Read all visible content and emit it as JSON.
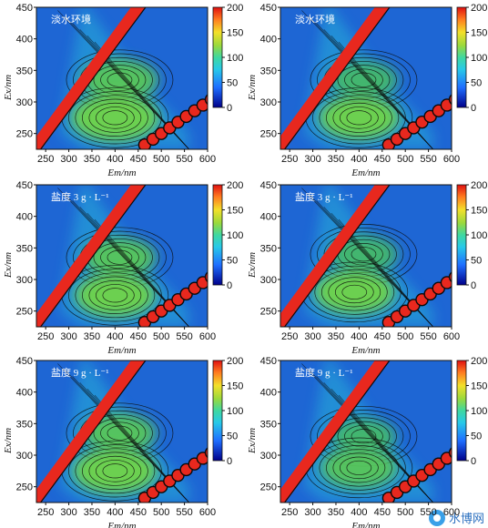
{
  "chart_data": [
    {
      "type": "heatmap",
      "condition": "淡水环境",
      "xlabel": "Em/nm",
      "ylabel": "Ex/nm",
      "x_ticks": [
        250,
        300,
        350,
        400,
        450,
        500,
        550,
        600
      ],
      "y_ticks": [
        250,
        300,
        350,
        400,
        450
      ],
      "xlim": [
        230,
        600
      ],
      "ylim": [
        225,
        450
      ],
      "colorbar": {
        "ticks": [
          0,
          50,
          100,
          150,
          200
        ],
        "range": [
          0,
          200
        ]
      },
      "peaks": [
        {
          "em": 410,
          "ex": 335,
          "intensity": 95
        },
        {
          "em": 400,
          "ex": 275,
          "intensity": 110
        }
      ]
    },
    {
      "type": "heatmap",
      "condition": "淡水环境",
      "xlabel": "Em/nm",
      "ylabel": "Ex/nm",
      "x_ticks": [
        250,
        300,
        350,
        400,
        450,
        500,
        550,
        600
      ],
      "y_ticks": [
        250,
        300,
        350,
        400,
        450
      ],
      "xlim": [
        230,
        600
      ],
      "ylim": [
        225,
        450
      ],
      "colorbar": {
        "ticks": [
          0,
          50,
          100,
          150,
          200
        ],
        "range": [
          0,
          200
        ]
      },
      "peaks": [
        {
          "em": 410,
          "ex": 335,
          "intensity": 85
        },
        {
          "em": 400,
          "ex": 275,
          "intensity": 100
        }
      ]
    },
    {
      "type": "heatmap",
      "condition": "盐度 3 g · L⁻¹",
      "xlabel": "Em/nm",
      "ylabel": "Ex/nm",
      "x_ticks": [
        250,
        300,
        350,
        400,
        450,
        500,
        550,
        600
      ],
      "y_ticks": [
        250,
        300,
        350,
        400,
        450
      ],
      "xlim": [
        230,
        600
      ],
      "ylim": [
        225,
        450
      ],
      "colorbar": {
        "ticks": [
          0,
          50,
          100,
          150,
          200
        ],
        "range": [
          0,
          200
        ]
      },
      "peaks": [
        {
          "em": 410,
          "ex": 335,
          "intensity": 90
        },
        {
          "em": 400,
          "ex": 275,
          "intensity": 100
        }
      ]
    },
    {
      "type": "heatmap",
      "condition": "盐度 3 g · L⁻¹",
      "xlabel": "Em/nm",
      "ylabel": "Ex/nm",
      "x_ticks": [
        250,
        300,
        350,
        400,
        450,
        500,
        550,
        600
      ],
      "y_ticks": [
        250,
        300,
        350,
        400,
        450
      ],
      "xlim": [
        230,
        600
      ],
      "ylim": [
        225,
        450
      ],
      "colorbar": {
        "ticks": [
          0,
          50,
          100,
          150,
          200
        ],
        "range": [
          0,
          200
        ]
      },
      "peaks": [
        {
          "em": 410,
          "ex": 340,
          "intensity": 85
        },
        {
          "em": 390,
          "ex": 280,
          "intensity": 100
        }
      ]
    },
    {
      "type": "heatmap",
      "condition": "盐度 9 g · L⁻¹",
      "xlabel": "Em/nm",
      "ylabel": "Ex/nm",
      "x_ticks": [
        250,
        300,
        350,
        400,
        450,
        500,
        550,
        600
      ],
      "y_ticks": [
        250,
        300,
        350,
        400,
        450
      ],
      "xlim": [
        230,
        600
      ],
      "ylim": [
        225,
        450
      ],
      "colorbar": {
        "ticks": [
          0,
          50,
          100,
          150,
          200
        ],
        "range": [
          0,
          200
        ]
      },
      "peaks": [
        {
          "em": 410,
          "ex": 335,
          "intensity": 90
        },
        {
          "em": 400,
          "ex": 275,
          "intensity": 105
        }
      ]
    },
    {
      "type": "heatmap",
      "condition": "盐度 9 g · L⁻¹",
      "xlabel": "Em/nm",
      "ylabel": "Ex/nm",
      "x_ticks": [
        250,
        300,
        350,
        400,
        450,
        500,
        550,
        600
      ],
      "y_ticks": [
        250,
        300,
        350,
        400,
        450
      ],
      "xlim": [
        230,
        600
      ],
      "ylim": [
        225,
        450
      ],
      "colorbar": {
        "ticks": [
          0,
          50,
          100,
          150,
          200
        ],
        "range": [
          0,
          200
        ]
      },
      "peaks": [
        {
          "em": 410,
          "ex": 330,
          "intensity": 80
        },
        {
          "em": 400,
          "ex": 280,
          "intensity": 95
        }
      ]
    }
  ],
  "watermark": {
    "text": "水博网",
    "icon": "wechat-icon"
  }
}
